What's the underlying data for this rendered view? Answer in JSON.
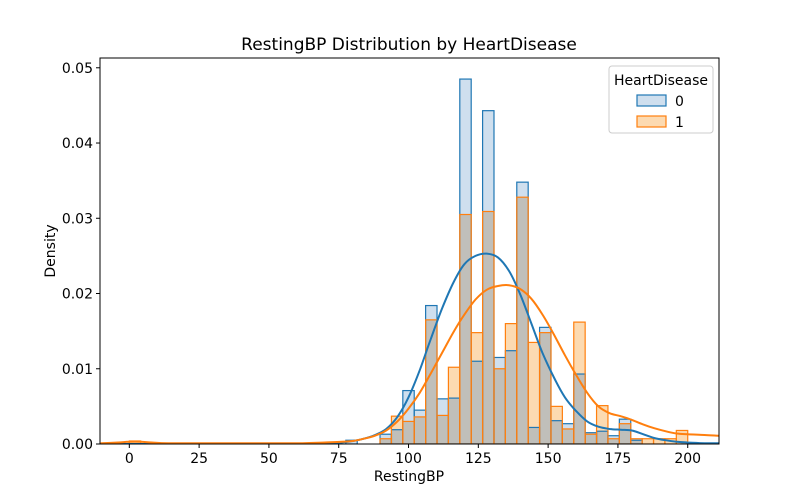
{
  "figure": {
    "title": "RestingBP Distribution by HeartDisease",
    "xlabel": "RestingBP",
    "ylabel": "Density",
    "background": "#ffffff"
  },
  "legend": {
    "title": "HeartDisease",
    "entries": [
      {
        "label": "0",
        "color": "#1f77b4"
      },
      {
        "label": "1",
        "color": "#ff7f0e"
      }
    ]
  },
  "chart_data": {
    "type": "histogram+kde",
    "title": "RestingBP Distribution by HeartDisease",
    "xlabel": "RestingBP",
    "ylabel": "Density",
    "x_ticks": [
      0,
      25,
      50,
      75,
      100,
      125,
      150,
      175,
      200
    ],
    "y_ticks": [
      "0.00",
      "0.01",
      "0.02",
      "0.03",
      "0.04",
      "0.05"
    ],
    "xlim": [
      -10.5,
      211.2
    ],
    "ylim": [
      0,
      0.0513
    ],
    "grid": false,
    "bin_start": 0,
    "bin_width": 4.0816,
    "colors": {
      "blue_line": "#1f77b4",
      "orange_line": "#ff7f0e",
      "blue_fill": "#cfdfee",
      "orange_fill": "#fcdab1",
      "overlap_fill": "#c0bfba",
      "legend_edge": "#cccccc",
      "spine": "#000000"
    },
    "series": [
      {
        "name": "0",
        "role": "HeartDisease=0 density",
        "values": [
          0,
          0,
          0,
          0,
          0,
          0,
          0,
          0,
          0,
          0,
          0,
          0,
          0,
          0,
          0,
          0,
          0,
          0,
          0,
          0.0005,
          0,
          0,
          0.0013,
          0.0019,
          0.0071,
          0.0045,
          0.0184,
          0.006,
          0.0061,
          0.0485,
          0.011,
          0.0443,
          0.0115,
          0.0124,
          0.0348,
          0.0022,
          0.0155,
          0.0031,
          0.0027,
          0.0093,
          0.0015,
          0.0017,
          0.0011,
          0.0033,
          0.0005,
          0,
          0,
          0,
          0
        ]
      },
      {
        "name": "1",
        "role": "HeartDisease=1 density",
        "values": [
          0.0004,
          0,
          0,
          0,
          0,
          0,
          0,
          0,
          0,
          0,
          0,
          0,
          0,
          0,
          0,
          0,
          0,
          0,
          0,
          0,
          0,
          0,
          0.0007,
          0.0037,
          0.003,
          0.0036,
          0.0165,
          0.0038,
          0.0102,
          0.0305,
          0.0148,
          0.0309,
          0.01,
          0.016,
          0.0328,
          0.0135,
          0.0148,
          0.005,
          0.002,
          0.0162,
          0.0013,
          0.0051,
          0.0007,
          0.0027,
          0.0007,
          0.0007,
          0.0007,
          0.0007,
          0.0018
        ]
      }
    ],
    "kde": [
      {
        "name": "0",
        "points": [
          [
            -10,
            0
          ],
          [
            40,
            0
          ],
          [
            62,
            0
          ],
          [
            70,
            0.0001
          ],
          [
            76,
            0.0002
          ],
          [
            80,
            0.0004
          ],
          [
            84,
            0.0007
          ],
          [
            88,
            0.0012
          ],
          [
            92,
            0.002
          ],
          [
            96,
            0.0036
          ],
          [
            100,
            0.0062
          ],
          [
            104,
            0.0098
          ],
          [
            108,
            0.014
          ],
          [
            112,
            0.018
          ],
          [
            116,
            0.0214
          ],
          [
            120,
            0.0239
          ],
          [
            124,
            0.025
          ],
          [
            128,
            0.0253
          ],
          [
            132,
            0.0248
          ],
          [
            136,
            0.023
          ],
          [
            140,
            0.0199
          ],
          [
            144,
            0.016
          ],
          [
            148,
            0.0121
          ],
          [
            152,
            0.0089
          ],
          [
            156,
            0.0062
          ],
          [
            160,
            0.0044
          ],
          [
            164,
            0.003
          ],
          [
            168,
            0.0023
          ],
          [
            172,
            0.002
          ],
          [
            176,
            0.0019
          ],
          [
            180,
            0.0018
          ],
          [
            184,
            0.0013
          ],
          [
            188,
            0.0008
          ],
          [
            192,
            0.0005
          ],
          [
            196,
            0.0003
          ],
          [
            200,
            0.0002
          ],
          [
            206,
            0.0001
          ],
          [
            211,
            0.0001
          ]
        ]
      },
      {
        "name": "1",
        "points": [
          [
            -10,
            0.0001
          ],
          [
            -4,
            0.0002
          ],
          [
            0,
            0.0003
          ],
          [
            4,
            0.0003
          ],
          [
            8,
            0.0002
          ],
          [
            14,
            0.0001
          ],
          [
            30,
            0.0001
          ],
          [
            50,
            0.0001
          ],
          [
            62,
            0.0001
          ],
          [
            70,
            0.0002
          ],
          [
            76,
            0.0003
          ],
          [
            80,
            0.0004
          ],
          [
            84,
            0.0007
          ],
          [
            88,
            0.0011
          ],
          [
            92,
            0.0018
          ],
          [
            96,
            0.003
          ],
          [
            100,
            0.0047
          ],
          [
            104,
            0.0068
          ],
          [
            108,
            0.0094
          ],
          [
            112,
            0.0121
          ],
          [
            116,
            0.0148
          ],
          [
            120,
            0.0172
          ],
          [
            124,
            0.0192
          ],
          [
            128,
            0.0205
          ],
          [
            132,
            0.021
          ],
          [
            136,
            0.0211
          ],
          [
            140,
            0.0206
          ],
          [
            144,
            0.0193
          ],
          [
            148,
            0.0172
          ],
          [
            152,
            0.0146
          ],
          [
            156,
            0.0118
          ],
          [
            160,
            0.0092
          ],
          [
            164,
            0.0068
          ],
          [
            168,
            0.005
          ],
          [
            172,
            0.0041
          ],
          [
            176,
            0.0037
          ],
          [
            180,
            0.0032
          ],
          [
            184,
            0.0026
          ],
          [
            188,
            0.0021
          ],
          [
            192,
            0.0017
          ],
          [
            196,
            0.0014
          ],
          [
            200,
            0.0013
          ],
          [
            206,
            0.0012
          ],
          [
            211,
            0.0011
          ]
        ]
      }
    ]
  }
}
